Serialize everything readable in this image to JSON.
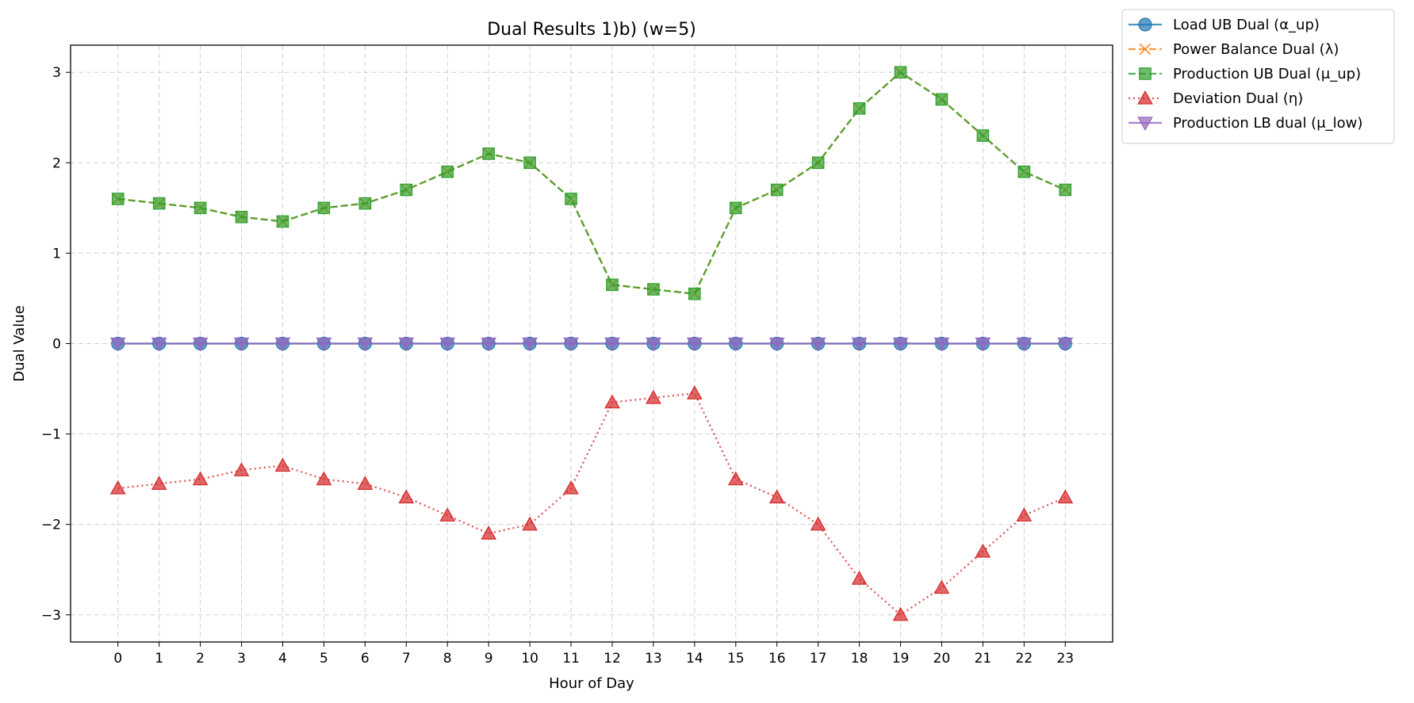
{
  "chart_data": {
    "type": "line",
    "title": "Dual Results 1)b) (w=5)",
    "xlabel": "Hour of Day",
    "ylabel": "Dual Value",
    "x": [
      0,
      1,
      2,
      3,
      4,
      5,
      6,
      7,
      8,
      9,
      10,
      11,
      12,
      13,
      14,
      15,
      16,
      17,
      18,
      19,
      20,
      21,
      22,
      23
    ],
    "x_tick_labels": [
      "0",
      "1",
      "2",
      "3",
      "4",
      "5",
      "6",
      "7",
      "8",
      "9",
      "10",
      "11",
      "12",
      "13",
      "14",
      "15",
      "16",
      "17",
      "18",
      "19",
      "20",
      "21",
      "22",
      "23"
    ],
    "xlim": [
      -1.15,
      24.15
    ],
    "ylim": [
      -3.3,
      3.3
    ],
    "y_ticks": [
      3,
      2,
      1,
      0,
      -1,
      -2,
      -3
    ],
    "y_tick_labels": [
      "3",
      "2",
      "1",
      "0",
      "−1",
      "−2",
      "−3"
    ],
    "grid": true,
    "legend_position": "outside top-right",
    "series": [
      {
        "name": "Load UB Dual (α_up)",
        "color": "#1f77b4",
        "linestyle": "solid",
        "marker": "circle",
        "values": [
          0,
          0,
          0,
          0,
          0,
          0,
          0,
          0,
          0,
          0,
          0,
          0,
          0,
          0,
          0,
          0,
          0,
          0,
          0,
          0,
          0,
          0,
          0,
          0
        ]
      },
      {
        "name": "Power Balance Dual (λ)",
        "color": "#ff7f0e",
        "linestyle": "dashed",
        "marker": "x",
        "values": [
          1.6,
          1.55,
          1.5,
          1.4,
          1.35,
          1.5,
          1.55,
          1.7,
          1.9,
          2.1,
          2.0,
          1.6,
          0.65,
          0.6,
          0.55,
          1.5,
          1.7,
          2.0,
          2.6,
          3.0,
          2.7,
          2.3,
          1.9,
          1.7
        ]
      },
      {
        "name": "Production UB Dual (μ_up)",
        "color": "#2ca02c",
        "linestyle": "dashed",
        "marker": "square",
        "values": [
          1.6,
          1.55,
          1.5,
          1.4,
          1.35,
          1.5,
          1.55,
          1.7,
          1.9,
          2.1,
          2.0,
          1.6,
          0.65,
          0.6,
          0.55,
          1.5,
          1.7,
          2.0,
          2.6,
          3.0,
          2.7,
          2.3,
          1.9,
          1.7
        ]
      },
      {
        "name": "Deviation Dual (η)",
        "color": "#d62728",
        "linestyle": "dotted",
        "marker": "triangle-up",
        "values": [
          -1.6,
          -1.55,
          -1.5,
          -1.4,
          -1.35,
          -1.5,
          -1.55,
          -1.7,
          -1.9,
          -2.1,
          -2.0,
          -1.6,
          -0.65,
          -0.6,
          -0.55,
          -1.5,
          -1.7,
          -2.0,
          -2.6,
          -3.0,
          -2.7,
          -2.3,
          -1.9,
          -1.7
        ]
      },
      {
        "name": "Production LB dual (μ_low)",
        "color": "#9467bd",
        "linestyle": "solid",
        "marker": "triangle-down",
        "values": [
          0,
          0,
          0,
          0,
          0,
          0,
          0,
          0,
          0,
          0,
          0,
          0,
          0,
          0,
          0,
          0,
          0,
          0,
          0,
          0,
          0,
          0,
          0,
          0
        ]
      }
    ]
  }
}
